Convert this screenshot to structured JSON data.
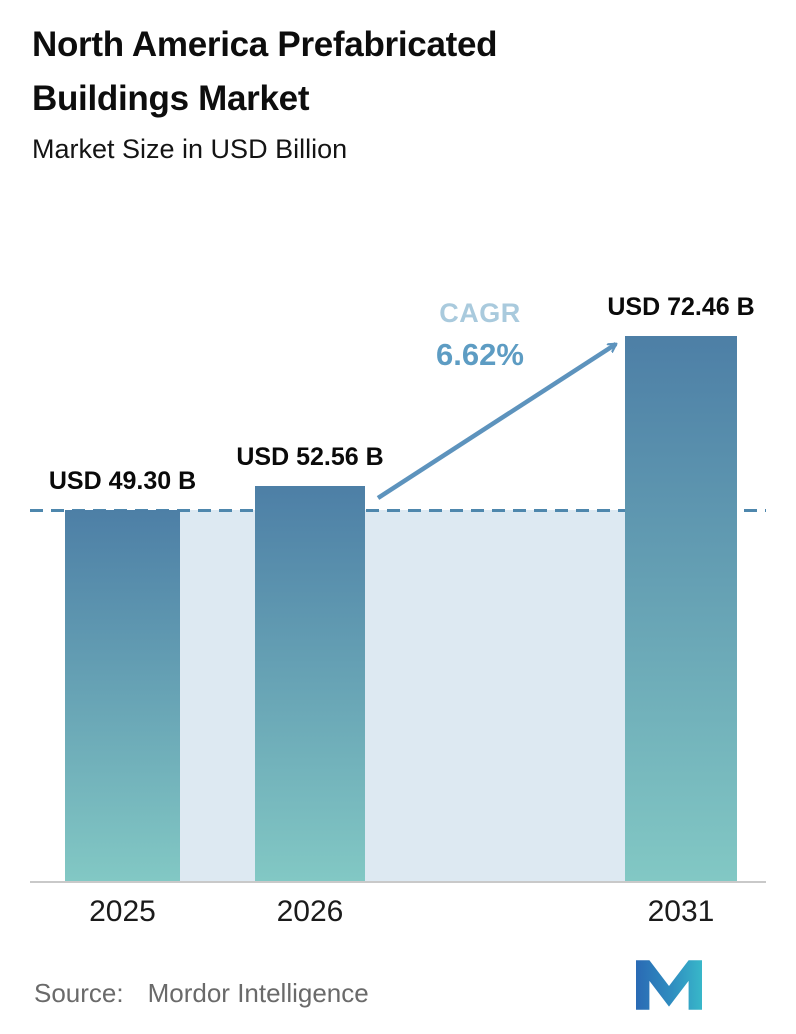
{
  "header": {
    "title": "North America Prefabricated Buildings Market",
    "subtitle": "Market Size in USD Billion"
  },
  "chart_data": {
    "type": "bar",
    "title": "North America Prefabricated Buildings Market",
    "subtitle": "Market Size in USD Billion",
    "unit": "USD Billion",
    "categories": [
      "2025",
      "2026",
      "2031"
    ],
    "values": [
      49.3,
      52.56,
      72.46
    ],
    "value_labels": [
      "USD 49.30 B",
      "USD 52.56 B",
      "USD 72.46 B"
    ],
    "ylim": [
      0,
      90
    ],
    "grid": false,
    "legend": "none",
    "reference_line_value": 49.3,
    "annotations": {
      "cagr_label": "CAGR",
      "cagr_value": "6.62%"
    },
    "colors": {
      "bar_top": "#4d7fa6",
      "bar_bottom": "#82c8c4",
      "band_fill": "#dde9f2",
      "dashed_line": "#4e87ad",
      "arrow": "#5d93bd",
      "cagr_label_color": "#a9cadd",
      "cagr_value_color": "#5d9cc3",
      "axis_line": "#c9c9c9"
    }
  },
  "footer": {
    "source_label": "Source:",
    "source_value": "Mordor Intelligence",
    "logo": "mordor-intelligence-logo"
  }
}
